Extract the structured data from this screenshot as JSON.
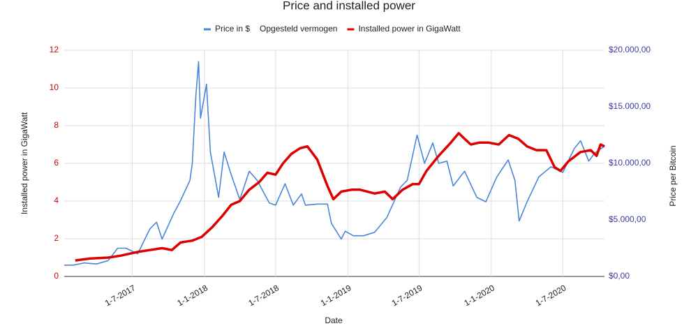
{
  "chart_data": {
    "type": "line",
    "title": "Price and installed power",
    "x_label": "Date",
    "y_label": "Installed power in GigaWatt",
    "y2_label": "Price per Bitcoin",
    "grid": true,
    "legend": "top",
    "xlim": [
      "2017-01-09",
      "2020-10-15"
    ],
    "xticks": [
      {
        "value": "2017-07-01",
        "label": "1-7-2017"
      },
      {
        "value": "2018-01-01",
        "label": "1-1-2018"
      },
      {
        "value": "2018-07-01",
        "label": "1-7-2018"
      },
      {
        "value": "2019-01-01",
        "label": "1-1-2019"
      },
      {
        "value": "2019-07-01",
        "label": "1-7-2019"
      },
      {
        "value": "2020-01-01",
        "label": "1-1-2020"
      },
      {
        "value": "2020-07-01",
        "label": "1-7-2020"
      }
    ],
    "ylim": [
      0,
      12
    ],
    "yticks": [
      0,
      2,
      4,
      6,
      8,
      10,
      12
    ],
    "y2lim": [
      0,
      20000
    ],
    "y2ticks": [
      {
        "value": 0,
        "label": "$0,00"
      },
      {
        "value": 5000,
        "label": "$5.000,00"
      },
      {
        "value": 10000,
        "label": "$10.000,00"
      },
      {
        "value": 15000,
        "label": "$15.000,00"
      },
      {
        "value": 20000,
        "label": "$20.000,00"
      }
    ],
    "series": [
      {
        "name": "Price in $",
        "color": "#4a86d8",
        "axis": "y2",
        "width": 1.6,
        "x": [
          "2017-01-09",
          "2017-02-01",
          "2017-03-01",
          "2017-04-01",
          "2017-05-01",
          "2017-05-25",
          "2017-06-15",
          "2017-07-15",
          "2017-08-15",
          "2017-09-01",
          "2017-09-15",
          "2017-10-15",
          "2017-11-01",
          "2017-11-25",
          "2017-12-01",
          "2017-12-10",
          "2017-12-17",
          "2017-12-22",
          "2018-01-06",
          "2018-01-16",
          "2018-02-06",
          "2018-02-20",
          "2018-03-10",
          "2018-04-01",
          "2018-04-25",
          "2018-05-15",
          "2018-06-15",
          "2018-07-01",
          "2018-07-25",
          "2018-08-15",
          "2018-09-05",
          "2018-09-15",
          "2018-10-15",
          "2018-11-10",
          "2018-11-20",
          "2018-12-15",
          "2018-12-25",
          "2019-01-15",
          "2019-02-10",
          "2019-03-10",
          "2019-04-10",
          "2019-05-15",
          "2019-06-01",
          "2019-06-26",
          "2019-07-15",
          "2019-08-05",
          "2019-08-20",
          "2019-09-10",
          "2019-09-26",
          "2019-10-25",
          "2019-11-25",
          "2019-12-18",
          "2020-01-15",
          "2020-02-13",
          "2020-03-01",
          "2020-03-12",
          "2020-04-01",
          "2020-05-01",
          "2020-06-01",
          "2020-07-01",
          "2020-07-30",
          "2020-08-15",
          "2020-09-05",
          "2020-09-20",
          "2020-10-10",
          "2020-10-15"
        ],
        "values": [
          1000,
          1000,
          1200,
          1100,
          1400,
          2500,
          2500,
          2000,
          4200,
          4800,
          3300,
          5600,
          6700,
          8500,
          10000,
          16000,
          19000,
          14000,
          17000,
          11000,
          7000,
          11000,
          9000,
          6800,
          9300,
          8500,
          6500,
          6300,
          8200,
          6300,
          7300,
          6300,
          6400,
          6400,
          4700,
          3300,
          4000,
          3600,
          3600,
          3900,
          5200,
          7900,
          8500,
          12500,
          10000,
          11800,
          10000,
          10200,
          8000,
          9300,
          7000,
          6600,
          8800,
          10300,
          8500,
          4900,
          6600,
          8800,
          9700,
          9200,
          11300,
          12000,
          10200,
          10900,
          11400,
          11500
        ]
      },
      {
        "name": "Opgesteld vermogen"
      },
      {
        "name": "Installed power in GigaWatt",
        "color": "#dd0000",
        "axis": "y",
        "width": 3.5,
        "x": [
          "2017-02-06",
          "2017-03-15",
          "2017-05-01",
          "2017-06-01",
          "2017-07-15",
          "2017-08-15",
          "2017-09-15",
          "2017-10-10",
          "2017-11-01",
          "2017-12-01",
          "2017-12-25",
          "2018-01-20",
          "2018-02-15",
          "2018-03-10",
          "2018-04-01",
          "2018-04-25",
          "2018-05-20",
          "2018-06-10",
          "2018-07-01",
          "2018-07-20",
          "2018-08-10",
          "2018-09-01",
          "2018-09-20",
          "2018-10-15",
          "2018-11-10",
          "2018-11-25",
          "2018-12-15",
          "2019-01-10",
          "2019-02-01",
          "2019-03-10",
          "2019-04-05",
          "2019-04-25",
          "2019-05-20",
          "2019-06-15",
          "2019-07-01",
          "2019-07-20",
          "2019-08-20",
          "2019-09-20",
          "2019-10-10",
          "2019-10-25",
          "2019-11-10",
          "2019-12-01",
          "2019-12-25",
          "2020-01-20",
          "2020-02-15",
          "2020-03-10",
          "2020-04-01",
          "2020-04-25",
          "2020-05-20",
          "2020-06-10",
          "2020-06-25",
          "2020-07-15",
          "2020-08-15",
          "2020-09-10",
          "2020-09-25",
          "2020-10-05",
          "2020-10-15"
        ],
        "values": [
          0.85,
          0.95,
          1.0,
          1.1,
          1.3,
          1.4,
          1.5,
          1.4,
          1.8,
          1.9,
          2.1,
          2.6,
          3.2,
          3.8,
          4.0,
          4.6,
          5.0,
          5.5,
          5.4,
          6.0,
          6.5,
          6.8,
          6.9,
          6.2,
          4.8,
          4.1,
          4.5,
          4.6,
          4.6,
          4.4,
          4.5,
          4.1,
          4.6,
          4.9,
          4.9,
          5.6,
          6.4,
          7.1,
          7.6,
          7.3,
          7.0,
          7.1,
          7.1,
          7.0,
          7.5,
          7.3,
          6.9,
          6.7,
          6.7,
          5.8,
          5.6,
          6.1,
          6.6,
          6.7,
          6.4,
          7.0,
          6.9
        ]
      }
    ]
  }
}
